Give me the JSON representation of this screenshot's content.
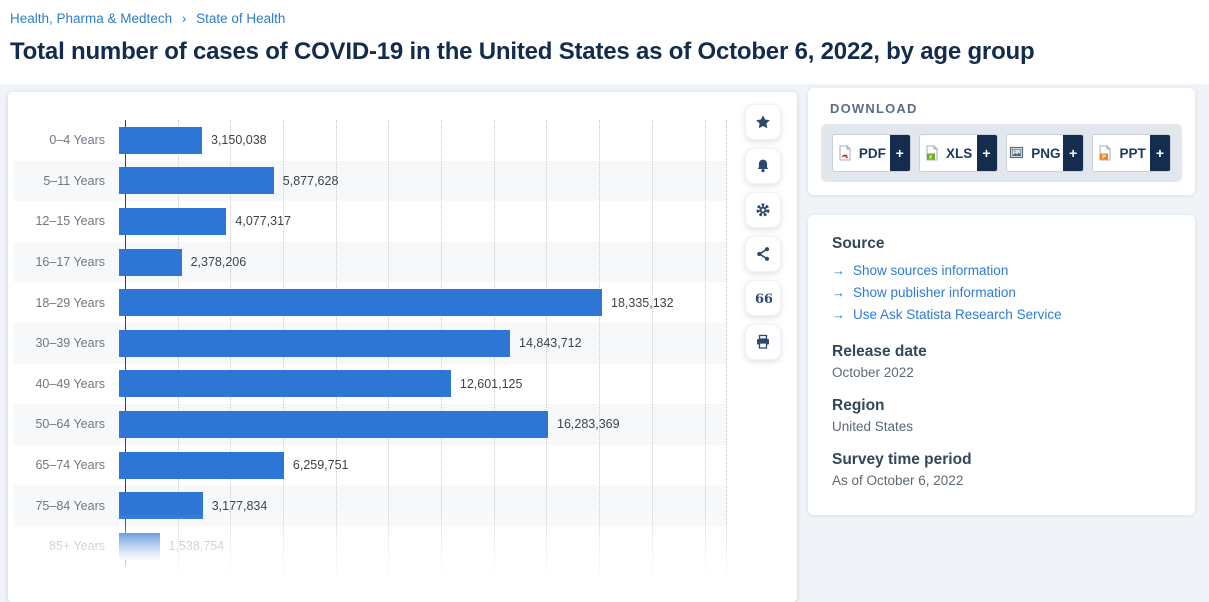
{
  "breadcrumb": {
    "items": [
      "Health, Pharma & Medtech",
      "State of Health"
    ],
    "separator": "›"
  },
  "page": {
    "title": "Total number of cases of COVID-19 in the United States as of October 6, 2022, by age group"
  },
  "chart_data": {
    "type": "bar",
    "orientation": "horizontal",
    "title": "Total number of cases of COVID-19 in the United States as of October 6, 2022, by age group",
    "categories": [
      "0–4 Years",
      "5–11 Years",
      "12–15 Years",
      "16–17 Years",
      "18–29 Years",
      "30–39 Years",
      "40–49 Years",
      "50–64 Years",
      "65–74 Years",
      "75–84 Years",
      "85+ Years"
    ],
    "values": [
      3150038,
      5877628,
      4077317,
      2378206,
      18335132,
      14843712,
      12601125,
      16283369,
      6259751,
      3177834,
      1538754
    ],
    "value_labels": [
      "3,150,038",
      "5,877,628",
      "4,077,317",
      "2,378,206",
      "18,335,132",
      "14,843,712",
      "12,601,125",
      "16,283,369",
      "6,259,751",
      "3,177,834",
      "1,538,754"
    ],
    "xlim": [
      0,
      22000000
    ],
    "gridline_interval": 2000000,
    "gridlines": "vertical-dotted",
    "row_striping": "alternate",
    "bar_color": "#2e76d6",
    "last_row_faded": true
  },
  "chart_actions": [
    {
      "name": "favorite-star-icon"
    },
    {
      "name": "alert-bell-icon"
    },
    {
      "name": "settings-gear-icon"
    },
    {
      "name": "share-icon"
    },
    {
      "name": "citation-quote-icon"
    },
    {
      "name": "print-icon"
    }
  ],
  "download": {
    "heading": "DOWNLOAD",
    "plus_label": "+",
    "buttons": [
      {
        "label": "PDF",
        "icon": "pdf-file-icon"
      },
      {
        "label": "XLS",
        "icon": "xls-file-icon"
      },
      {
        "label": "PNG",
        "icon": "png-file-icon"
      },
      {
        "label": "PPT",
        "icon": "ppt-file-icon"
      }
    ]
  },
  "source_panel": {
    "source_heading": "Source",
    "link_arrow": "→",
    "links": [
      "Show sources information",
      "Show publisher information",
      "Use Ask Statista Research Service"
    ],
    "sections": [
      {
        "heading": "Release date",
        "value": "October 2022"
      },
      {
        "heading": "Region",
        "value": "United States"
      },
      {
        "heading": "Survey time period",
        "value": "As of October 6, 2022"
      }
    ]
  },
  "colors": {
    "bar_blue": "#2e76d6",
    "link_blue": "#2c7cd6",
    "navy": "#142c4e",
    "title_navy": "#132c4d"
  }
}
